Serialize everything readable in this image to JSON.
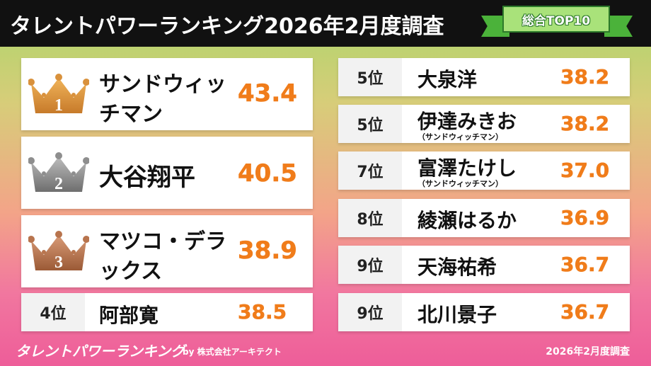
{
  "header": {
    "title": "タレントパワーランキング2026年2月度調査",
    "badge": "総合TOP10"
  },
  "colors": {
    "score": "#f07c1a",
    "gold": "#d9913c",
    "silver": "#8e8e8e",
    "bronze": "#b8744d",
    "badge": "#a9e27a"
  },
  "top3": [
    {
      "rank": "1",
      "name_line1": "サンドウィッ",
      "name_line2": "チマン",
      "score": "43.4",
      "icon": "gold-crown-icon"
    },
    {
      "rank": "2",
      "name_line1": "大谷翔平",
      "name_line2": "",
      "score": "40.5",
      "icon": "silver-crown-icon"
    },
    {
      "rank": "3",
      "name_line1": "マツコ・デラ",
      "name_line2": "ックス",
      "score": "38.9",
      "icon": "bronze-crown-icon"
    }
  ],
  "fourth": {
    "rank": "4位",
    "name": "阿部寛",
    "score": "38.5"
  },
  "right_list": [
    {
      "rank": "5位",
      "name": "大泉洋",
      "sub": "",
      "score": "38.2"
    },
    {
      "rank": "5位",
      "name": "伊達みきお",
      "sub": "（サンドウィッチマン）",
      "score": "38.2"
    },
    {
      "rank": "7位",
      "name": "富澤たけし",
      "sub": "（サンドウィッチマン）",
      "score": "37.0"
    },
    {
      "rank": "8位",
      "name": "綾瀬はるか",
      "sub": "",
      "score": "36.9"
    },
    {
      "rank": "9位",
      "name": "天海祐希",
      "sub": "",
      "score": "36.7"
    },
    {
      "rank": "9位",
      "name": "北川景子",
      "sub": "",
      "score": "36.7"
    }
  ],
  "footer": {
    "logo": "タレントパワーランキング",
    "by": "by 株式会社アーキテクト",
    "date": "2026年2月度調査"
  }
}
